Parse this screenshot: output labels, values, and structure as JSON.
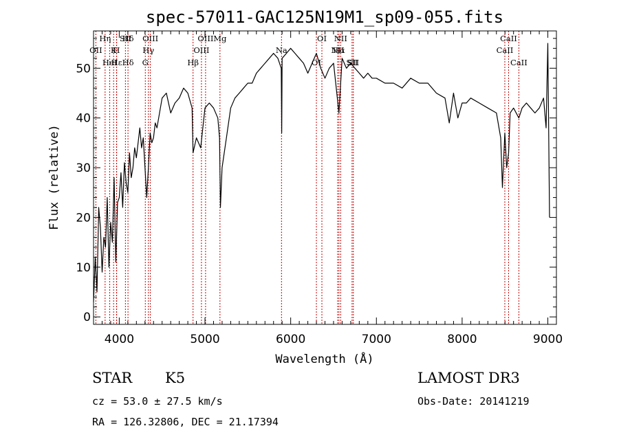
{
  "chart_data": {
    "type": "line",
    "title": "spec-57011-GAC125N19M1_sp09-055.fits",
    "xlabel": "Wavelength (Å)",
    "ylabel": "Flux (relative)",
    "xlim": [
      3700,
      9100
    ],
    "ylim": [
      -1.5,
      57.5
    ],
    "xticks": [
      4000,
      5000,
      6000,
      7000,
      8000,
      9000
    ],
    "yticks": [
      0,
      10,
      20,
      30,
      40,
      50
    ],
    "grid": false,
    "spectrum": {
      "x": [
        3700,
        3720,
        3740,
        3760,
        3780,
        3800,
        3820,
        3840,
        3860,
        3880,
        3900,
        3920,
        3940,
        3960,
        3980,
        4000,
        4020,
        4040,
        4060,
        4080,
        4100,
        4120,
        4140,
        4160,
        4180,
        4200,
        4220,
        4240,
        4260,
        4280,
        4300,
        4320,
        4340,
        4360,
        4380,
        4400,
        4420,
        4440,
        4460,
        4480,
        4500,
        4550,
        4600,
        4650,
        4700,
        4750,
        4800,
        4850,
        4861,
        4900,
        4950,
        5000,
        5050,
        5100,
        5150,
        5170,
        5180,
        5200,
        5250,
        5300,
        5350,
        5400,
        5450,
        5500,
        5550,
        5600,
        5650,
        5700,
        5750,
        5800,
        5850,
        5890,
        5895,
        5900,
        5950,
        6000,
        6050,
        6100,
        6150,
        6200,
        6250,
        6300,
        6350,
        6400,
        6450,
        6500,
        6563,
        6600,
        6650,
        6700,
        6750,
        6800,
        6850,
        6900,
        6950,
        7000,
        7100,
        7200,
        7300,
        7400,
        7500,
        7600,
        7700,
        7800,
        7850,
        7900,
        7950,
        8000,
        8050,
        8100,
        8200,
        8300,
        8400,
        8450,
        8470,
        8498,
        8520,
        8542,
        8560,
        8600,
        8662,
        8700,
        8750,
        8800,
        8850,
        8900,
        8950,
        8980,
        9000,
        9020
      ],
      "y": [
        3,
        12,
        5,
        22,
        18,
        9,
        16,
        14,
        24,
        10,
        19,
        15,
        28,
        11,
        23,
        24,
        29,
        22,
        31,
        27,
        25,
        33,
        28,
        30,
        34,
        32,
        35,
        38,
        34,
        36,
        30,
        24,
        30,
        37,
        35,
        36,
        39,
        38,
        40,
        42,
        44,
        45,
        41,
        43,
        44,
        46,
        45,
        42,
        33,
        36,
        34,
        42,
        43,
        42,
        40,
        36,
        22,
        30,
        36,
        42,
        44,
        45,
        46,
        47,
        47,
        49,
        50,
        51,
        52,
        53,
        52,
        50,
        37,
        52,
        53,
        54,
        53,
        52,
        51,
        49,
        51,
        53,
        50,
        48,
        50,
        51,
        41,
        52,
        50,
        51,
        50,
        49,
        48,
        49,
        48,
        48,
        47,
        47,
        46,
        48,
        47,
        47,
        45,
        44,
        39,
        45,
        40,
        43,
        43,
        44,
        43,
        42,
        41,
        36,
        26,
        37,
        30,
        33,
        41,
        42,
        40,
        42,
        43,
        42,
        41,
        42,
        44,
        38,
        55,
        20
      ]
    },
    "line_labels": [
      {
        "name": "Hδ",
        "wave": 4102
      },
      {
        "name": "K",
        "wave": 3934
      },
      {
        "name": "Hδ",
        "wave": 4102
      },
      {
        "name": "OIII",
        "wave": 4363
      },
      {
        "name": "OII",
        "wave": 3727
      },
      {
        "name": "HeI",
        "wave": 3889
      },
      {
        "name": "SII",
        "wave": 4072
      },
      {
        "name": "Hγ",
        "wave": 4340
      },
      {
        "name": "Hε",
        "wave": 3970
      },
      {
        "name": "Hη",
        "wave": 3835
      },
      {
        "name": "H",
        "wave": 3968
      },
      {
        "name": "G",
        "wave": 4304
      },
      {
        "name": "OIII",
        "wave": 5007
      },
      {
        "name": "OIII",
        "wave": 4959
      },
      {
        "name": "Hβ",
        "wave": 4861
      },
      {
        "name": "Mg",
        "wave": 5175
      },
      {
        "name": "Na",
        "wave": 5893
      },
      {
        "name": "OI",
        "wave": 6300
      },
      {
        "name": "OI",
        "wave": 6364
      },
      {
        "name": "Hα",
        "wave": 6563
      },
      {
        "name": "SII",
        "wave": 6716
      },
      {
        "name": "NII",
        "wave": 6583
      },
      {
        "name": "NII",
        "wave": 6548
      },
      {
        "name": "SII",
        "wave": 6731
      },
      {
        "name": "CaII",
        "wave": 8542
      },
      {
        "name": "CaII",
        "wave": 8498
      },
      {
        "name": "CaII",
        "wave": 8662
      }
    ],
    "line_colors": {
      "spectrum": "#000000",
      "markers": "#c00000"
    }
  },
  "info": {
    "class": "STAR",
    "subclass": "K5",
    "survey": "LAMOST DR3",
    "cz": "cz = 53.0 ± 27.5 km/s",
    "obs_date": "Obs-Date: 20141219",
    "coords": "RA = 126.32806, DEC =  21.17394"
  }
}
